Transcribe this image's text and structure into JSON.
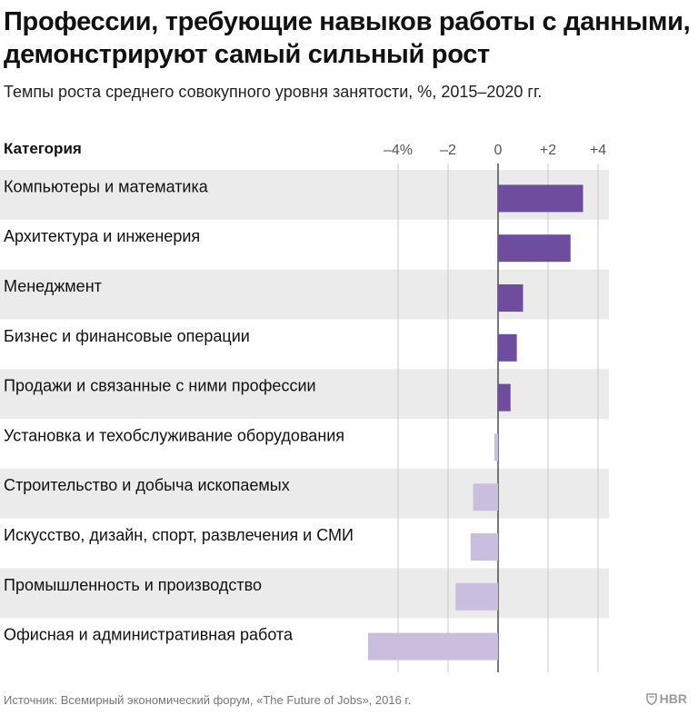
{
  "chart_data": {
    "type": "bar",
    "orientation": "horizontal",
    "title": "Профессии, требующие навыков работы с данными, демонстрируют самый сильный рост",
    "subtitle": "Темпы роста среднего совокупного уровня занятости, %, 2015–2020 гг.",
    "category_header": "Категория",
    "categories": [
      "Компьютеры и математика",
      "Архитектура и инженерия",
      "Менеджмент",
      "Бизнес и финансовые операции",
      "Продажи и связанные с ними профессии",
      "Установка и техобслуживание оборудования",
      "Строительство и добыча ископаемых",
      "Искусство, дизайн, спорт, развлечения и СМИ",
      "Промышленность и производство",
      "Офисная и административная работа"
    ],
    "values": [
      3.4,
      2.9,
      1.0,
      0.75,
      0.5,
      -0.15,
      -1.0,
      -1.1,
      -1.7,
      -5.2
    ],
    "x_ticks": [
      -4,
      -2,
      0,
      2,
      4
    ],
    "x_tick_labels": [
      "–4%",
      "–2",
      "0",
      "+2",
      "+4"
    ],
    "xlim": [
      -5.4,
      4.5
    ],
    "grid": true,
    "colors": {
      "positive": "#6e4c9e",
      "negative": "#c9bedd",
      "row_band": "#ebebeb",
      "grid": "#c8c8c8",
      "zero_line": "#333333"
    }
  },
  "footer": {
    "source": "Источник: Всемирный экономический форум, «The Future of Jobs», 2016 г.",
    "logo_text": "HBR"
  }
}
